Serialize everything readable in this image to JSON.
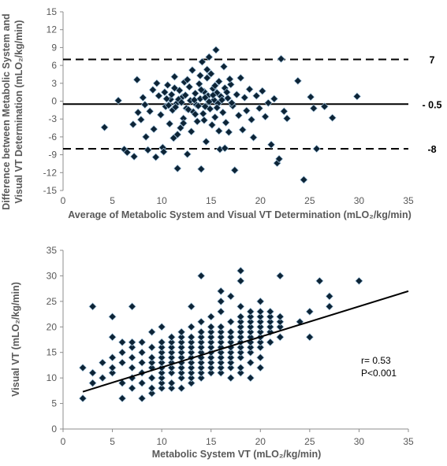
{
  "colors": {
    "marker": "#0d2436",
    "marker_edge": "#a9c9e2",
    "axis": "#8c8c8c",
    "text": "#595959",
    "line": "#000000"
  },
  "chart_data": [
    {
      "type": "scatter",
      "title": "",
      "xlabel": "Average of Metabolic System and Visual VT Determination (mLO₂/kg/min)",
      "ylabel_line1": "Difference between Metabolic System and",
      "ylabel_line2": "Visual VT Determination (mLO₂/kg/min)",
      "xlim": [
        0,
        35
      ],
      "ylim": [
        -15,
        15
      ],
      "x_ticks": [
        "0",
        "5",
        "10",
        "15",
        "20",
        "25",
        "30",
        "35"
      ],
      "y_ticks": [
        "15",
        "12",
        "9",
        "6",
        "3",
        "0",
        "-3",
        "-6",
        "-9",
        "-12",
        "-15"
      ],
      "reference_lines": [
        {
          "value": 7,
          "label": "7",
          "style": "dashed"
        },
        {
          "value": -0.5,
          "label": "- 0.5",
          "style": "solid"
        },
        {
          "value": -8,
          "label": "-8",
          "style": "dashed"
        }
      ],
      "grid": false,
      "points": [
        [
          4.2,
          -4.4
        ],
        [
          5.6,
          0.1
        ],
        [
          6.2,
          -8.1
        ],
        [
          6.5,
          -8.6
        ],
        [
          7.1,
          -3.9
        ],
        [
          7.2,
          -9.3
        ],
        [
          7.5,
          3.6
        ],
        [
          7.6,
          -1.9
        ],
        [
          7.9,
          -3.1
        ],
        [
          8.1,
          0.6
        ],
        [
          8.3,
          -0.6
        ],
        [
          8.4,
          -6.0
        ],
        [
          8.6,
          -8.2
        ],
        [
          8.8,
          -1.7
        ],
        [
          9.1,
          1.9
        ],
        [
          9.2,
          -4.7
        ],
        [
          9.4,
          -9.4
        ],
        [
          9.5,
          3.0
        ],
        [
          9.7,
          0.9
        ],
        [
          9.9,
          -2.3
        ],
        [
          10.1,
          -7.8
        ],
        [
          10.2,
          -8.5
        ],
        [
          10.3,
          1.5
        ],
        [
          10.4,
          -0.9
        ],
        [
          10.6,
          2.7
        ],
        [
          10.8,
          -3.8
        ],
        [
          10.9,
          0.3
        ],
        [
          11.1,
          -1.5
        ],
        [
          11.2,
          -6.2
        ],
        [
          11.3,
          4.1
        ],
        [
          11.5,
          -0.4
        ],
        [
          11.6,
          -11.3
        ],
        [
          11.8,
          1.8
        ],
        [
          11.9,
          -4.5
        ],
        [
          12.1,
          0.7
        ],
        [
          12.2,
          -2.9
        ],
        [
          12.3,
          3.2
        ],
        [
          12.5,
          -1.2
        ],
        [
          12.6,
          -8.9
        ],
        [
          12.8,
          2.4
        ],
        [
          12.9,
          0.1
        ],
        [
          13.0,
          -5.1
        ],
        [
          13.1,
          5.2
        ],
        [
          13.2,
          -1.8
        ],
        [
          13.4,
          1.3
        ],
        [
          13.5,
          -0.6
        ],
        [
          13.6,
          -3.4
        ],
        [
          13.8,
          2.9
        ],
        [
          13.9,
          0.4
        ],
        [
          14.0,
          -11.4
        ],
        [
          14.1,
          6.6
        ],
        [
          14.2,
          -2.1
        ],
        [
          14.3,
          1.6
        ],
        [
          14.4,
          -0.9
        ],
        [
          14.5,
          -6.8
        ],
        [
          14.6,
          3.9
        ],
        [
          14.7,
          0.9
        ],
        [
          14.8,
          7.4
        ],
        [
          14.9,
          -1.3
        ],
        [
          15.0,
          4.6
        ],
        [
          15.1,
          -4.0
        ],
        [
          15.2,
          2.1
        ],
        [
          15.3,
          0.2
        ],
        [
          15.4,
          -2.7
        ],
        [
          15.5,
          8.6
        ],
        [
          15.6,
          1.4
        ],
        [
          15.7,
          -0.4
        ],
        [
          15.8,
          3.3
        ],
        [
          15.9,
          -8.1
        ],
        [
          16.0,
          0.8
        ],
        [
          16.2,
          -1.9
        ],
        [
          16.3,
          5.8
        ],
        [
          16.4,
          2.2
        ],
        [
          16.5,
          -3.6
        ],
        [
          16.7,
          0.5
        ],
        [
          16.8,
          -5.2
        ],
        [
          17.0,
          2.8
        ],
        [
          17.2,
          -0.8
        ],
        [
          17.4,
          -11.6
        ],
        [
          17.6,
          1.1
        ],
        [
          17.8,
          -2.4
        ],
        [
          18.0,
          3.9
        ],
        [
          18.2,
          -4.8
        ],
        [
          18.4,
          0.6
        ],
        [
          18.6,
          -1.6
        ],
        [
          18.9,
          2.0
        ],
        [
          19.1,
          -3.1
        ],
        [
          19.3,
          -6.1
        ],
        [
          19.6,
          0.9
        ],
        [
          19.9,
          -1.2
        ],
        [
          20.2,
          1.7
        ],
        [
          20.5,
          -2.6
        ],
        [
          20.8,
          -0.3
        ],
        [
          21.1,
          -7.3
        ],
        [
          21.4,
          0.4
        ],
        [
          21.7,
          -10.4
        ],
        [
          21.9,
          -9.7
        ],
        [
          22.1,
          7.1
        ],
        [
          22.4,
          -1.7
        ],
        [
          22.7,
          -2.9
        ],
        [
          23.8,
          3.4
        ],
        [
          24.4,
          -13.2
        ],
        [
          25.1,
          0.7
        ],
        [
          25.4,
          -1.2
        ],
        [
          25.7,
          -8.0
        ],
        [
          26.5,
          -0.9
        ],
        [
          27.3,
          -2.8
        ],
        [
          29.8,
          0.8
        ],
        [
          10.5,
          0.4
        ],
        [
          10.7,
          -0.7
        ],
        [
          11.0,
          1.1
        ],
        [
          11.4,
          -1.0
        ],
        [
          11.7,
          0.3
        ],
        [
          12.0,
          -0.2
        ],
        [
          12.4,
          1.0
        ],
        [
          12.7,
          -1.4
        ],
        [
          13.3,
          0.2
        ],
        [
          13.7,
          -0.8
        ],
        [
          14.0,
          1.9
        ],
        [
          14.4,
          0.6
        ],
        [
          14.8,
          -0.1
        ],
        [
          15.2,
          1.0
        ],
        [
          15.6,
          -1.1
        ],
        [
          16.1,
          0.2
        ],
        [
          16.6,
          1.5
        ],
        [
          17.1,
          -0.3
        ],
        [
          11.3,
          2.2
        ],
        [
          12.6,
          3.6
        ],
        [
          13.9,
          4.3
        ],
        [
          14.6,
          5.3
        ],
        [
          15.4,
          2.6
        ],
        [
          16.9,
          3.7
        ],
        [
          13.4,
          -2.2
        ],
        [
          12.2,
          -3.7
        ],
        [
          14.3,
          -3.2
        ],
        [
          15.8,
          -5.0
        ],
        [
          11.6,
          -5.6
        ],
        [
          16.4,
          -7.9
        ]
      ]
    },
    {
      "type": "scatter",
      "title": "",
      "xlabel": "Metabolic System VT (mLO₂/kg/min)",
      "ylabel": "Visual VT (mLO₂/kg/min)",
      "xlim": [
        0,
        35
      ],
      "ylim": [
        0,
        35
      ],
      "x_ticks": [
        "0",
        "5",
        "10",
        "15",
        "20",
        "25",
        "30",
        "35"
      ],
      "y_ticks": [
        "35",
        "30",
        "25",
        "20",
        "15",
        "10",
        "5",
        "0"
      ],
      "grid": false,
      "trendline": {
        "x": [
          2,
          35
        ],
        "y": [
          7.3,
          27.0
        ]
      },
      "annotations": [
        "r= 0.53",
        "P<0.001"
      ],
      "points": [
        [
          2,
          6
        ],
        [
          2,
          12
        ],
        [
          3,
          9
        ],
        [
          3,
          11
        ],
        [
          3,
          24
        ],
        [
          4,
          10
        ],
        [
          4,
          13
        ],
        [
          5,
          11
        ],
        [
          5,
          12
        ],
        [
          5,
          14
        ],
        [
          5,
          18
        ],
        [
          5,
          22
        ],
        [
          6,
          6
        ],
        [
          6,
          9
        ],
        [
          6,
          13
        ],
        [
          6,
          15
        ],
        [
          6,
          17
        ],
        [
          7,
          8
        ],
        [
          7,
          10
        ],
        [
          7,
          12
        ],
        [
          7,
          14
        ],
        [
          7,
          16
        ],
        [
          7,
          17
        ],
        [
          7,
          24
        ],
        [
          8,
          6
        ],
        [
          8,
          9
        ],
        [
          8,
          11
        ],
        [
          8,
          13
        ],
        [
          8,
          15
        ],
        [
          8,
          17
        ],
        [
          9,
          7
        ],
        [
          9,
          8
        ],
        [
          9,
          10
        ],
        [
          9,
          12
        ],
        [
          9,
          13
        ],
        [
          9,
          14
        ],
        [
          9,
          16
        ],
        [
          9,
          19
        ],
        [
          10,
          8
        ],
        [
          10,
          9
        ],
        [
          10,
          10
        ],
        [
          10,
          11
        ],
        [
          10,
          12
        ],
        [
          10,
          13
        ],
        [
          10,
          14
        ],
        [
          10,
          15
        ],
        [
          10,
          16
        ],
        [
          10,
          17
        ],
        [
          10,
          20
        ],
        [
          11,
          8
        ],
        [
          11,
          9
        ],
        [
          11,
          11
        ],
        [
          11,
          12
        ],
        [
          11,
          13
        ],
        [
          11,
          14
        ],
        [
          11,
          15
        ],
        [
          11,
          16
        ],
        [
          11,
          17
        ],
        [
          11,
          18
        ],
        [
          12,
          8
        ],
        [
          12,
          10
        ],
        [
          12,
          11
        ],
        [
          12,
          12
        ],
        [
          12,
          13
        ],
        [
          12,
          14
        ],
        [
          12,
          15
        ],
        [
          12,
          16
        ],
        [
          12,
          17
        ],
        [
          12,
          18
        ],
        [
          12,
          19
        ],
        [
          13,
          9
        ],
        [
          13,
          10
        ],
        [
          13,
          11
        ],
        [
          13,
          12
        ],
        [
          13,
          13
        ],
        [
          13,
          14
        ],
        [
          13,
          15
        ],
        [
          13,
          16
        ],
        [
          13,
          17
        ],
        [
          13,
          18
        ],
        [
          13,
          20
        ],
        [
          13,
          24
        ],
        [
          14,
          10
        ],
        [
          14,
          11
        ],
        [
          14,
          12
        ],
        [
          14,
          13
        ],
        [
          14,
          14
        ],
        [
          14,
          15
        ],
        [
          14,
          16
        ],
        [
          14,
          17
        ],
        [
          14,
          18
        ],
        [
          14,
          19
        ],
        [
          14,
          21
        ],
        [
          14,
          30
        ],
        [
          15,
          11
        ],
        [
          15,
          12
        ],
        [
          15,
          13
        ],
        [
          15,
          14
        ],
        [
          15,
          15
        ],
        [
          15,
          16
        ],
        [
          15,
          17
        ],
        [
          15,
          18
        ],
        [
          15,
          19
        ],
        [
          15,
          20
        ],
        [
          15,
          22
        ],
        [
          16,
          11
        ],
        [
          16,
          12
        ],
        [
          16,
          13
        ],
        [
          16,
          14
        ],
        [
          16,
          15
        ],
        [
          16,
          16
        ],
        [
          16,
          17
        ],
        [
          16,
          18
        ],
        [
          16,
          19
        ],
        [
          16,
          20
        ],
        [
          16,
          23
        ],
        [
          16,
          25
        ],
        [
          16,
          27
        ],
        [
          17,
          10
        ],
        [
          17,
          12
        ],
        [
          17,
          13
        ],
        [
          17,
          14
        ],
        [
          17,
          15
        ],
        [
          17,
          16
        ],
        [
          17,
          17
        ],
        [
          17,
          18
        ],
        [
          17,
          19
        ],
        [
          17,
          21
        ],
        [
          17,
          26
        ],
        [
          18,
          11
        ],
        [
          18,
          12
        ],
        [
          18,
          14
        ],
        [
          18,
          15
        ],
        [
          18,
          16
        ],
        [
          18,
          17
        ],
        [
          18,
          18
        ],
        [
          18,
          19
        ],
        [
          18,
          20
        ],
        [
          18,
          21
        ],
        [
          18,
          22
        ],
        [
          18,
          24
        ],
        [
          18,
          29
        ],
        [
          18,
          31
        ],
        [
          19,
          10
        ],
        [
          19,
          13
        ],
        [
          19,
          15
        ],
        [
          19,
          16
        ],
        [
          19,
          17
        ],
        [
          19,
          18
        ],
        [
          19,
          19
        ],
        [
          19,
          20
        ],
        [
          19,
          21
        ],
        [
          19,
          22
        ],
        [
          19,
          23
        ],
        [
          20,
          12
        ],
        [
          20,
          14
        ],
        [
          20,
          16
        ],
        [
          20,
          17
        ],
        [
          20,
          18
        ],
        [
          20,
          19
        ],
        [
          20,
          20
        ],
        [
          20,
          21
        ],
        [
          20,
          22
        ],
        [
          20,
          23
        ],
        [
          20,
          25
        ],
        [
          21,
          17
        ],
        [
          21,
          19
        ],
        [
          21,
          20
        ],
        [
          21,
          21
        ],
        [
          21,
          22
        ],
        [
          21,
          23
        ],
        [
          22,
          18
        ],
        [
          22,
          20
        ],
        [
          22,
          21
        ],
        [
          22,
          22
        ],
        [
          22,
          30
        ],
        [
          24,
          21
        ],
        [
          25,
          18
        ],
        [
          25,
          23
        ],
        [
          26,
          29
        ],
        [
          27,
          24
        ],
        [
          27,
          26
        ],
        [
          30,
          29
        ]
      ]
    }
  ]
}
